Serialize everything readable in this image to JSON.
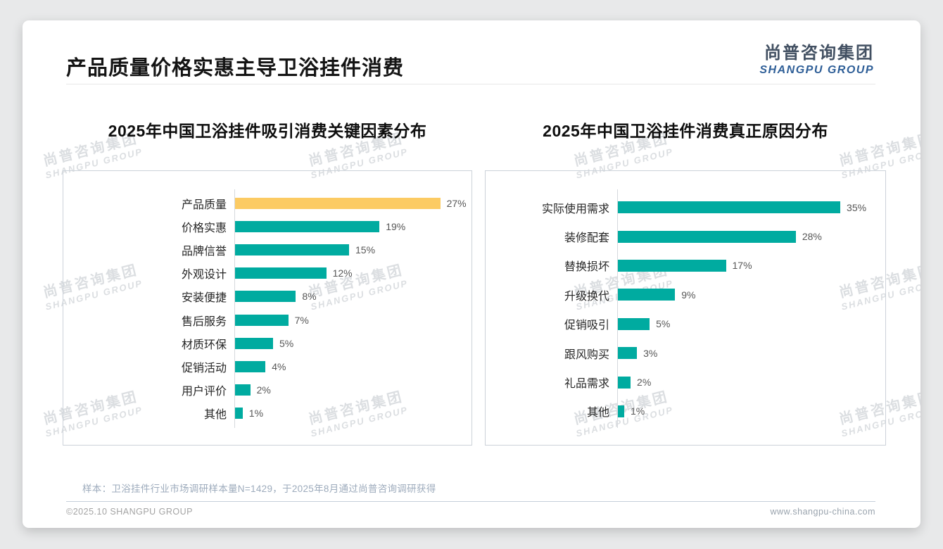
{
  "header": {
    "title": "产品质量价格实惠主导卫浴挂件消费"
  },
  "logo": {
    "cn": "尚普咨询集团",
    "en": "SHANGPU GROUP"
  },
  "watermark": {
    "cn": "尚普咨询集团",
    "en": "SHANGPU GROUP"
  },
  "colors": {
    "teal": "#00aba0",
    "yellow": "#fccb63",
    "logo_blue": "#2e5e97"
  },
  "chart_data": [
    {
      "type": "bar",
      "orientation": "horizontal",
      "title": "2025年中国卫浴挂件吸引消费关键因素分布",
      "categories": [
        "产品质量",
        "价格实惠",
        "品牌信誉",
        "外观设计",
        "安装便捷",
        "售后服务",
        "材质环保",
        "促销活动",
        "用户评价",
        "其他"
      ],
      "values": [
        27,
        19,
        15,
        12,
        8,
        7,
        5,
        4,
        2,
        1
      ],
      "value_labels": [
        "27%",
        "19%",
        "15%",
        "12%",
        "8%",
        "7%",
        "5%",
        "4%",
        "2%",
        "1%"
      ],
      "unit": "%",
      "xlim": [
        0,
        30
      ],
      "bar_color": "#00aba0",
      "highlight_index": 0,
      "highlight_color": "#fccb63",
      "grid": false,
      "legend": "none"
    },
    {
      "type": "bar",
      "orientation": "horizontal",
      "title": "2025年中国卫浴挂件消费真正原因分布",
      "categories": [
        "实际使用需求",
        "装修配套",
        "替换损坏",
        "升级换代",
        "促销吸引",
        "跟风购买",
        "礼品需求",
        "其他"
      ],
      "values": [
        35,
        28,
        17,
        9,
        5,
        3,
        2,
        1
      ],
      "value_labels": [
        "35%",
        "28%",
        "17%",
        "9%",
        "5%",
        "3%",
        "2%",
        "1%"
      ],
      "unit": "%",
      "xlim": [
        0,
        38
      ],
      "bar_color": "#00aba0",
      "highlight_index": -1,
      "highlight_color": "#00aba0",
      "grid": false,
      "legend": "none"
    }
  ],
  "footer": {
    "note": "样本：卫浴挂件行业市场调研样本量N=1429，于2025年8月通过尚普咨询调研获得",
    "copyright": "©2025.10 SHANGPU GROUP",
    "website": "www.shangpu-china.com"
  }
}
